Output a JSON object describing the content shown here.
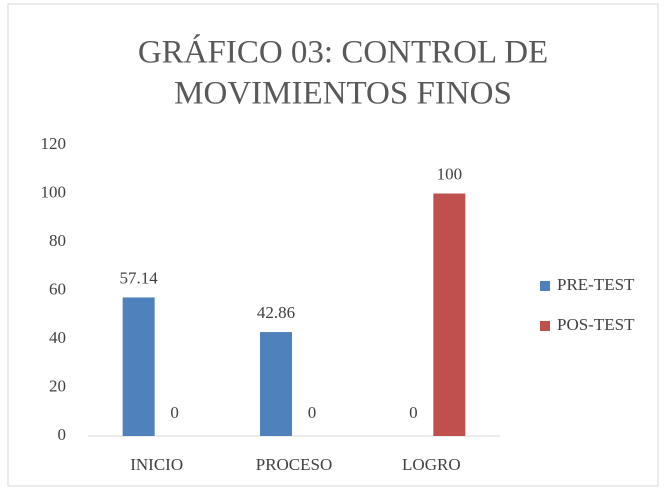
{
  "chart_data": {
    "type": "bar",
    "title": [
      "GRÁFICO 03: CONTROL DE",
      "MOVIMIENTOS FINOS"
    ],
    "categories": [
      "INICIO",
      "PROCESO",
      "LOGRO"
    ],
    "series": [
      {
        "name": "PRE-TEST",
        "color": "#4f81bd",
        "values": [
          57.14,
          42.86,
          0
        ]
      },
      {
        "name": "POS-TEST",
        "color": "#c0504d",
        "values": [
          0,
          0,
          100
        ]
      }
    ],
    "ylim": [
      0,
      120
    ],
    "yticks": [
      0,
      20,
      40,
      60,
      80,
      100,
      120
    ],
    "grid": false,
    "legend": "right"
  }
}
